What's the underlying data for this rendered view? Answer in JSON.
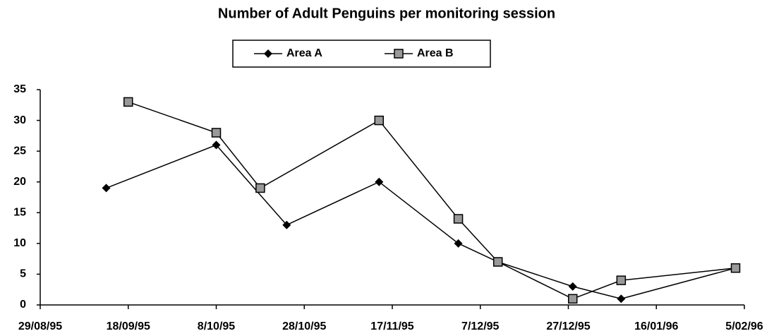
{
  "chart_data": {
    "type": "line",
    "title": "Number of Adult Penguins per monitoring session",
    "series": [
      {
        "name": "Area A",
        "color": "#000000",
        "marker": "diamond",
        "x": [
          "13/09/95",
          "8/10/95",
          "24/10/95",
          "14/11/95",
          "2/12/95",
          "11/12/95",
          "28/12/95",
          "8/01/96",
          "3/02/96"
        ],
        "values": [
          19,
          26,
          13,
          20,
          10,
          7,
          3,
          1,
          6
        ]
      },
      {
        "name": "Area B",
        "color": "#000000",
        "marker": "square",
        "x": [
          "18/09/95",
          "8/10/95",
          "18/10/95",
          "14/11/95",
          "2/12/95",
          "11/12/95",
          "28/12/95",
          "8/01/96",
          "3/02/96"
        ],
        "values": [
          33,
          28,
          19,
          30,
          14,
          7,
          1,
          4,
          6
        ]
      }
    ],
    "xlim": [
      "29/08/95",
      "5/02/96"
    ],
    "xticks": [
      "29/08/95",
      "18/09/95",
      "8/10/95",
      "28/10/95",
      "17/11/95",
      "7/12/95",
      "27/12/95",
      "16/01/96",
      "5/02/96"
    ],
    "ylim": [
      0,
      35
    ],
    "yticks": [
      0,
      5,
      10,
      15,
      20,
      25,
      30,
      35
    ],
    "grid": false,
    "legend": "top"
  }
}
